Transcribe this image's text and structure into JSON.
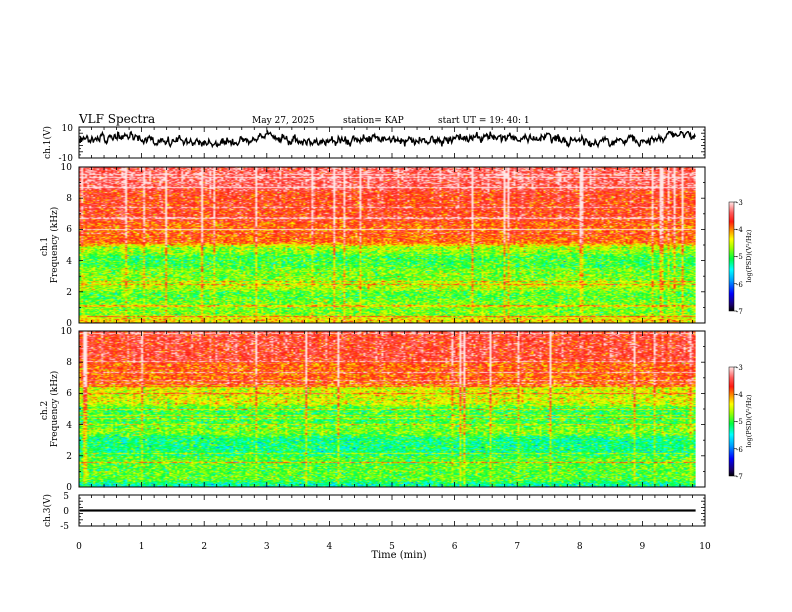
{
  "header": {
    "title": "VLF Spectra",
    "date": "May 27, 2025",
    "station": "station= KAP",
    "start": "start  UT  =    19: 40: 1"
  },
  "chart_data": [
    {
      "id": "ch1_waveform",
      "type": "line",
      "ylabel": "ch.1(V)",
      "ylim": [
        -10,
        10
      ],
      "ytick_labels": [
        "10",
        "-10"
      ],
      "xlim": [
        0,
        10
      ],
      "data_end_min": 9.85,
      "description_values": {
        "mean": 2,
        "amplitude_range": [
          -2.5,
          7
        ]
      }
    },
    {
      "id": "ch1_spectrogram",
      "type": "heatmap",
      "ylabel": "ch.1\nFrequency (kHz)",
      "ylim": [
        0,
        10
      ],
      "ytick_labels": [
        "0",
        "2",
        "4",
        "6",
        "8",
        "10"
      ],
      "xlim": [
        0,
        10
      ],
      "data_end_min": 9.85,
      "band_levels_kHz": [
        [
          0,
          0.4,
          -4.3
        ],
        [
          0.4,
          1.5,
          -4.8
        ],
        [
          1.5,
          2.1,
          -4.9
        ],
        [
          2.1,
          2.6,
          -4.6
        ],
        [
          2.6,
          3.5,
          -4.8
        ],
        [
          3.5,
          4.4,
          -5.0
        ],
        [
          4.4,
          5.0,
          -4.7
        ],
        [
          5.0,
          6.5,
          -3.9
        ],
        [
          6.5,
          8.5,
          -3.7
        ],
        [
          8.5,
          10,
          -3.4
        ]
      ],
      "colorbar_label": "log(PSD)(V²/Hz)",
      "colorbar_range": [
        -7,
        -3
      ],
      "colorbar_ticks": [
        "-3",
        "-4",
        "-5",
        "-6",
        "-7"
      ]
    },
    {
      "id": "ch2_spectrogram",
      "type": "heatmap",
      "ylabel": "ch.2\nFrequency (kHz)",
      "ylim": [
        0,
        10
      ],
      "ytick_labels": [
        "0",
        "2",
        "4",
        "6",
        "8",
        "10"
      ],
      "xlim": [
        0,
        10
      ],
      "data_end_min": 9.85,
      "band_levels_kHz": [
        [
          0,
          0.3,
          -5.3
        ],
        [
          0.3,
          2.0,
          -4.9
        ],
        [
          2.0,
          3.3,
          -5.2
        ],
        [
          3.3,
          4.0,
          -4.8
        ],
        [
          4.0,
          5.2,
          -5.0
        ],
        [
          5.2,
          6.5,
          -4.5
        ],
        [
          6.5,
          8.0,
          -3.9
        ],
        [
          8.0,
          10,
          -3.6
        ]
      ],
      "colorbar_label": "log(PSD)(V²/Hz)",
      "colorbar_range": [
        -7,
        -3
      ],
      "colorbar_ticks": [
        "-3",
        "-4",
        "-5",
        "-6",
        "-7"
      ]
    },
    {
      "id": "ch3_waveform",
      "type": "line",
      "ylabel": "ch.3(V)",
      "ylim": [
        -5,
        5
      ],
      "ytick_labels": [
        "5",
        "0",
        "-5"
      ],
      "xlim": [
        0,
        10
      ],
      "xlabel": "Time (min)",
      "xtick_labels": [
        "0",
        "1",
        "2",
        "3",
        "4",
        "5",
        "6",
        "7",
        "8",
        "9",
        "10"
      ],
      "data_end_min": 9.85,
      "level_value": 0,
      "level_band": [
        -0.35,
        0.35
      ]
    }
  ],
  "colors": {
    "axis": "#000000",
    "trace": "#000000",
    "background": "#ffffff"
  }
}
